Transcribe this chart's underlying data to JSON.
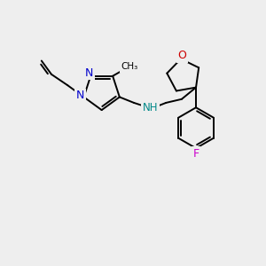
{
  "bg_color": "#eeeeee",
  "atom_colors": {
    "N": "#0000cc",
    "O": "#cc0000",
    "F": "#cc00cc",
    "NH": "#008888",
    "C": "#000000"
  },
  "lw": 1.4,
  "figsize": [
    3.0,
    3.0
  ],
  "dpi": 100,
  "xlim": [
    0,
    10
  ],
  "ylim": [
    0,
    10
  ]
}
